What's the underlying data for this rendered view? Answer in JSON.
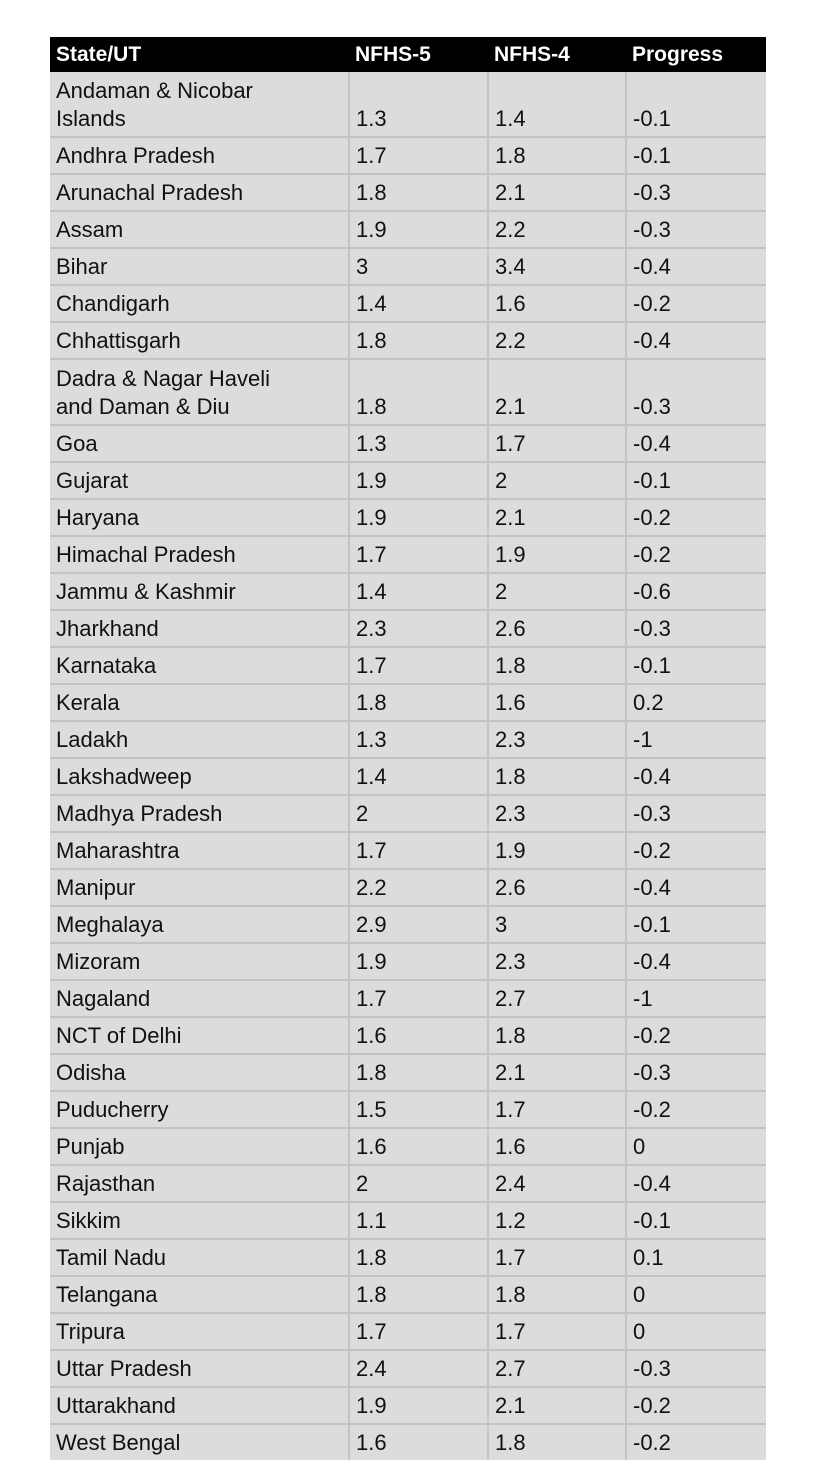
{
  "table": {
    "headers": [
      "State/UT",
      "NFHS-5",
      "NFHS-4",
      "Progress"
    ],
    "rows": [
      {
        "state": "Andaman & Nicobar Islands",
        "nfhs5": "1.3",
        "nfhs4": "1.4",
        "progress": "-0.1"
      },
      {
        "state": "Andhra Pradesh",
        "nfhs5": "1.7",
        "nfhs4": "1.8",
        "progress": "-0.1"
      },
      {
        "state": "Arunachal Pradesh",
        "nfhs5": "1.8",
        "nfhs4": "2.1",
        "progress": "-0.3"
      },
      {
        "state": "Assam",
        "nfhs5": "1.9",
        "nfhs4": "2.2",
        "progress": "-0.3"
      },
      {
        "state": "Bihar",
        "nfhs5": "3",
        "nfhs4": "3.4",
        "progress": "-0.4"
      },
      {
        "state": "Chandigarh",
        "nfhs5": "1.4",
        "nfhs4": "1.6",
        "progress": "-0.2"
      },
      {
        "state": "Chhattisgarh",
        "nfhs5": "1.8",
        "nfhs4": "2.2",
        "progress": "-0.4"
      },
      {
        "state": "Dadra & Nagar Haveli and Daman & Diu",
        "nfhs5": "1.8",
        "nfhs4": "2.1",
        "progress": "-0.3"
      },
      {
        "state": "Goa",
        "nfhs5": "1.3",
        "nfhs4": "1.7",
        "progress": "-0.4"
      },
      {
        "state": "Gujarat",
        "nfhs5": "1.9",
        "nfhs4": "2",
        "progress": "-0.1"
      },
      {
        "state": "Haryana",
        "nfhs5": "1.9",
        "nfhs4": "2.1",
        "progress": "-0.2"
      },
      {
        "state": "Himachal Pradesh",
        "nfhs5": "1.7",
        "nfhs4": "1.9",
        "progress": "-0.2"
      },
      {
        "state": "Jammu & Kashmir",
        "nfhs5": "1.4",
        "nfhs4": "2",
        "progress": "-0.6"
      },
      {
        "state": "Jharkhand",
        "nfhs5": "2.3",
        "nfhs4": "2.6",
        "progress": "-0.3"
      },
      {
        "state": "Karnataka",
        "nfhs5": "1.7",
        "nfhs4": "1.8",
        "progress": "-0.1"
      },
      {
        "state": "Kerala",
        "nfhs5": "1.8",
        "nfhs4": "1.6",
        "progress": "0.2"
      },
      {
        "state": "Ladakh",
        "nfhs5": "1.3",
        "nfhs4": "2.3",
        "progress": "-1"
      },
      {
        "state": "Lakshadweep",
        "nfhs5": "1.4",
        "nfhs4": "1.8",
        "progress": "-0.4"
      },
      {
        "state": "Madhya Pradesh",
        "nfhs5": "2",
        "nfhs4": "2.3",
        "progress": "-0.3"
      },
      {
        "state": "Maharashtra",
        "nfhs5": "1.7",
        "nfhs4": "1.9",
        "progress": "-0.2"
      },
      {
        "state": "Manipur",
        "nfhs5": "2.2",
        "nfhs4": "2.6",
        "progress": "-0.4"
      },
      {
        "state": "Meghalaya",
        "nfhs5": "2.9",
        "nfhs4": "3",
        "progress": "-0.1"
      },
      {
        "state": "Mizoram",
        "nfhs5": "1.9",
        "nfhs4": "2.3",
        "progress": "-0.4"
      },
      {
        "state": "Nagaland",
        "nfhs5": "1.7",
        "nfhs4": "2.7",
        "progress": "-1"
      },
      {
        "state": "NCT of Delhi",
        "nfhs5": "1.6",
        "nfhs4": "1.8",
        "progress": "-0.2"
      },
      {
        "state": "Odisha",
        "nfhs5": "1.8",
        "nfhs4": "2.1",
        "progress": "-0.3"
      },
      {
        "state": "Puducherry",
        "nfhs5": "1.5",
        "nfhs4": "1.7",
        "progress": "-0.2"
      },
      {
        "state": "Punjab",
        "nfhs5": "1.6",
        "nfhs4": "1.6",
        "progress": "0"
      },
      {
        "state": "Rajasthan",
        "nfhs5": "2",
        "nfhs4": "2.4",
        "progress": "-0.4"
      },
      {
        "state": "Sikkim",
        "nfhs5": "1.1",
        "nfhs4": "1.2",
        "progress": "-0.1"
      },
      {
        "state": "Tamil Nadu",
        "nfhs5": "1.8",
        "nfhs4": "1.7",
        "progress": "0.1"
      },
      {
        "state": "Telangana",
        "nfhs5": "1.8",
        "nfhs4": "1.8",
        "progress": "0"
      },
      {
        "state": "Tripura",
        "nfhs5": "1.7",
        "nfhs4": "1.7",
        "progress": "0"
      },
      {
        "state": "Uttar Pradesh",
        "nfhs5": "2.4",
        "nfhs4": "2.7",
        "progress": "-0.3"
      },
      {
        "state": "Uttarakhand",
        "nfhs5": "1.9",
        "nfhs4": "2.1",
        "progress": "-0.2"
      },
      {
        "state": "West Bengal",
        "nfhs5": "1.6",
        "nfhs4": "1.8",
        "progress": "-0.2"
      }
    ]
  },
  "colors": {
    "header_bg": "#000000",
    "header_text": "#ffffff",
    "cell_bg": "#dcdcdc",
    "grid_line": "#c4c4c4"
  }
}
